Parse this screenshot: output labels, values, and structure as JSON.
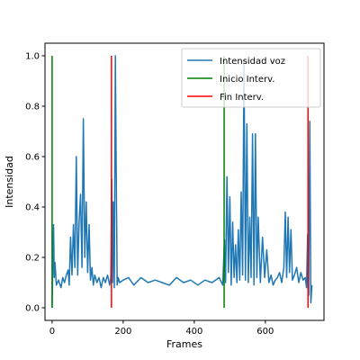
{
  "chart_data": {
    "type": "line",
    "xlabel": "Frames",
    "ylabel": "Intensidad",
    "xlim": [
      -20,
      765
    ],
    "ylim": [
      -0.05,
      1.05
    ],
    "xticks": [
      0,
      200,
      400,
      600
    ],
    "yticks": [
      0.0,
      0.2,
      0.4,
      0.6,
      0.8,
      1.0
    ],
    "xtick_labels": [
      "0",
      "200",
      "400",
      "600"
    ],
    "ytick_labels": [
      "0.0",
      "0.2",
      "0.4",
      "0.6",
      "0.8",
      "1.0"
    ],
    "grid": false,
    "legend_position": "top-right",
    "series": [
      {
        "name": "Intensidad voz",
        "color": "#1f77b4",
        "x": [
          0,
          4,
          6,
          8,
          12,
          18,
          25,
          30,
          35,
          40,
          45,
          48,
          52,
          56,
          60,
          64,
          68,
          72,
          76,
          80,
          84,
          88,
          92,
          96,
          100,
          104,
          108,
          112,
          116,
          120,
          126,
          132,
          138,
          144,
          150,
          156,
          162,
          165,
          168,
          170,
          172,
          175,
          178,
          180,
          183,
          186,
          190,
          200,
          215,
          230,
          250,
          270,
          290,
          310,
          330,
          350,
          370,
          390,
          410,
          430,
          450,
          470,
          480,
          485,
          488,
          492,
          496,
          500,
          504,
          508,
          512,
          516,
          520,
          524,
          528,
          532,
          536,
          540,
          544,
          548,
          552,
          556,
          560,
          564,
          568,
          572,
          576,
          580,
          586,
          592,
          598,
          604,
          610,
          616,
          622,
          628,
          634,
          640,
          646,
          652,
          656,
          660,
          664,
          668,
          672,
          676,
          682,
          688,
          694,
          700,
          706,
          712,
          716,
          719,
          722,
          725,
          728,
          731
        ],
        "y": [
          0.0,
          0.33,
          0.12,
          0.18,
          0.09,
          0.11,
          0.08,
          0.12,
          0.1,
          0.13,
          0.15,
          0.09,
          0.28,
          0.13,
          0.33,
          0.16,
          0.6,
          0.13,
          0.34,
          0.45,
          0.16,
          0.75,
          0.2,
          0.42,
          0.14,
          0.33,
          0.11,
          0.16,
          0.09,
          0.13,
          0.1,
          0.12,
          0.08,
          0.12,
          0.1,
          0.13,
          0.09,
          0.12,
          0.51,
          0.1,
          0.42,
          0.08,
          1.0,
          0.6,
          0.09,
          0.12,
          0.1,
          0.11,
          0.12,
          0.09,
          0.12,
          0.1,
          0.11,
          0.1,
          0.09,
          0.12,
          0.1,
          0.11,
          0.09,
          0.11,
          0.1,
          0.12,
          0.09,
          0.27,
          0.1,
          0.52,
          0.14,
          0.44,
          0.09,
          0.34,
          0.12,
          0.25,
          0.1,
          0.31,
          0.11,
          0.46,
          0.13,
          0.98,
          0.11,
          0.73,
          0.1,
          0.36,
          0.12,
          0.69,
          0.09,
          0.69,
          0.12,
          0.36,
          0.1,
          0.28,
          0.12,
          0.23,
          0.1,
          0.13,
          0.09,
          0.11,
          0.12,
          0.14,
          0.1,
          0.16,
          0.38,
          0.12,
          0.36,
          0.14,
          0.31,
          0.11,
          0.13,
          0.16,
          0.1,
          0.14,
          0.11,
          0.12,
          0.08,
          0.29,
          0.05,
          0.74,
          0.02,
          0.09
        ]
      }
    ],
    "vlines": [
      {
        "name": "Inicio Interv.",
        "color": "#008000",
        "lines": [
          {
            "x": 0,
            "y": [
              0,
              1.0
            ]
          },
          {
            "x": 484,
            "y": [
              0,
              1.0
            ]
          }
        ]
      },
      {
        "name": "Fin Interv.",
        "color": "#ff0000",
        "lines": [
          {
            "x": 167,
            "y": [
              0,
              1.0
            ]
          },
          {
            "x": 720,
            "y": [
              0,
              1.0
            ]
          }
        ]
      }
    ]
  }
}
